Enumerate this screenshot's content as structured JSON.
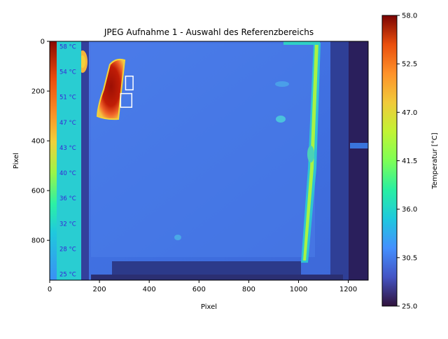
{
  "chart_data": {
    "type": "heatmap",
    "title": "JPEG Aufnahme 1 - Auswahl des Referenzbereichs",
    "xlabel": "Pixel",
    "ylabel": "Pixel",
    "xlim": [
      0,
      1280
    ],
    "ylim": [
      960,
      0
    ],
    "xticks": [
      0,
      200,
      400,
      600,
      800,
      1000,
      1200
    ],
    "yticks": [
      0,
      200,
      400,
      600,
      800
    ],
    "colorbar": {
      "label": "Temperatur [°C]",
      "min": 25.0,
      "max": 58.0,
      "ticks": [
        "58.0",
        "52.5",
        "47.0",
        "41.5",
        "36.0",
        "30.5",
        "25.0"
      ],
      "colormap": "turbo"
    },
    "scale_labels": [
      "58 °C",
      "54 °C",
      "51 °C",
      "47 °C",
      "43 °C",
      "40 °C",
      "36 °C",
      "32 °C",
      "28 °C",
      "25 °C"
    ],
    "scale_label_color": "#3a1fd6",
    "reference_boxes": [
      {
        "x": [
          305,
          335
        ],
        "y": [
          140,
          195
        ]
      },
      {
        "x": [
          285,
          330
        ],
        "y": [
          210,
          265
        ]
      }
    ],
    "box_color": "#ffffff"
  }
}
